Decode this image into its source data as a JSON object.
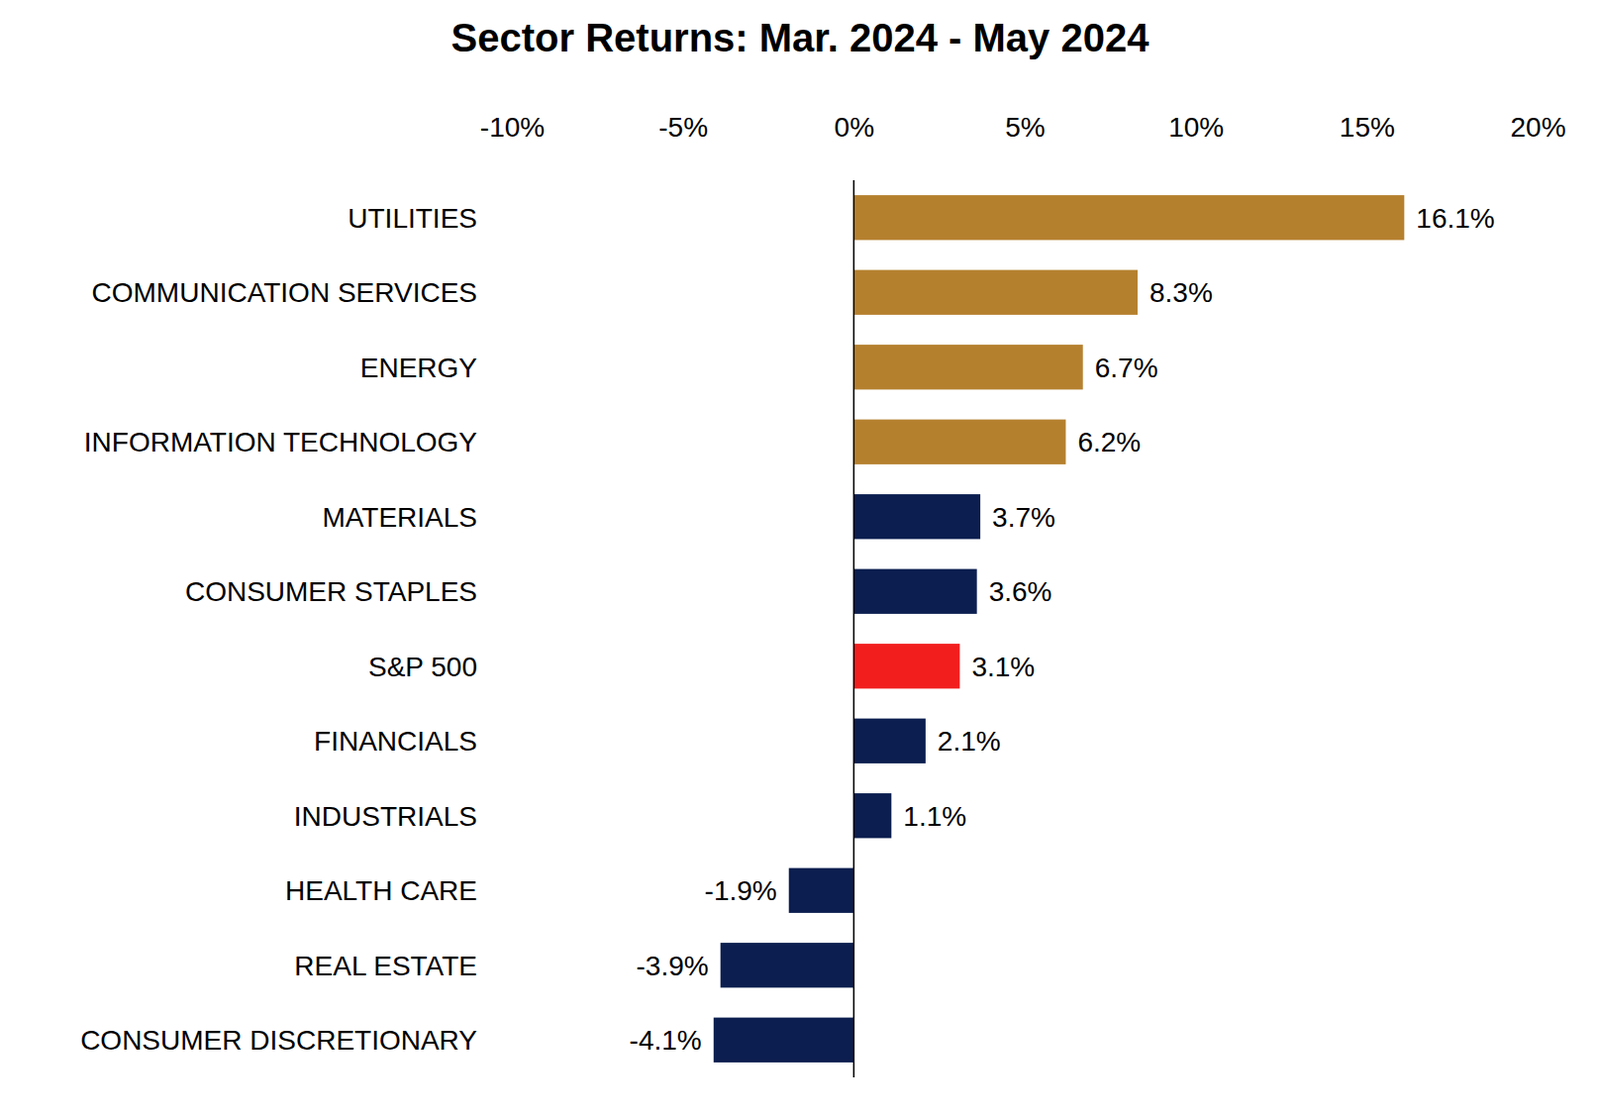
{
  "chart_data": {
    "type": "bar",
    "title": "Sector Returns: Mar. 2024 - May 2024",
    "orientation": "horizontal",
    "data_labels": true,
    "categories": [
      "UTILITIES",
      "COMMUNICATION SERVICES",
      "ENERGY",
      "INFORMATION TECHNOLOGY",
      "MATERIALS",
      "CONSUMER STAPLES",
      "S&P 500",
      "FINANCIALS",
      "INDUSTRIALS",
      "HEALTH CARE",
      "REAL ESTATE",
      "CONSUMER DISCRETIONARY"
    ],
    "values": [
      16.1,
      8.3,
      6.7,
      6.2,
      3.7,
      3.6,
      3.1,
      2.1,
      1.1,
      -1.9,
      -3.9,
      -4.1
    ],
    "value_labels": [
      "16.1%",
      "8.3%",
      "6.7%",
      "6.2%",
      "3.7%",
      "3.6%",
      "3.1%",
      "2.1%",
      "1.1%",
      "-1.9%",
      "-3.9%",
      "-4.1%"
    ],
    "colors": [
      "#b5802e",
      "#b5802e",
      "#b5802e",
      "#b5802e",
      "#0c1e4f",
      "#0c1e4f",
      "#f21e1e",
      "#0c1e4f",
      "#0c1e4f",
      "#0c1e4f",
      "#0c1e4f",
      "#0c1e4f"
    ],
    "xlim": [
      -10,
      20
    ],
    "xticks": [
      {
        "value": -10,
        "label": "-10%"
      },
      {
        "value": -5,
        "label": "-5%"
      },
      {
        "value": 0,
        "label": "0%"
      },
      {
        "value": 5,
        "label": "5%"
      },
      {
        "value": 10,
        "label": "10%"
      },
      {
        "value": 15,
        "label": "15%"
      },
      {
        "value": 20,
        "label": "20%"
      }
    ],
    "grid": false
  }
}
